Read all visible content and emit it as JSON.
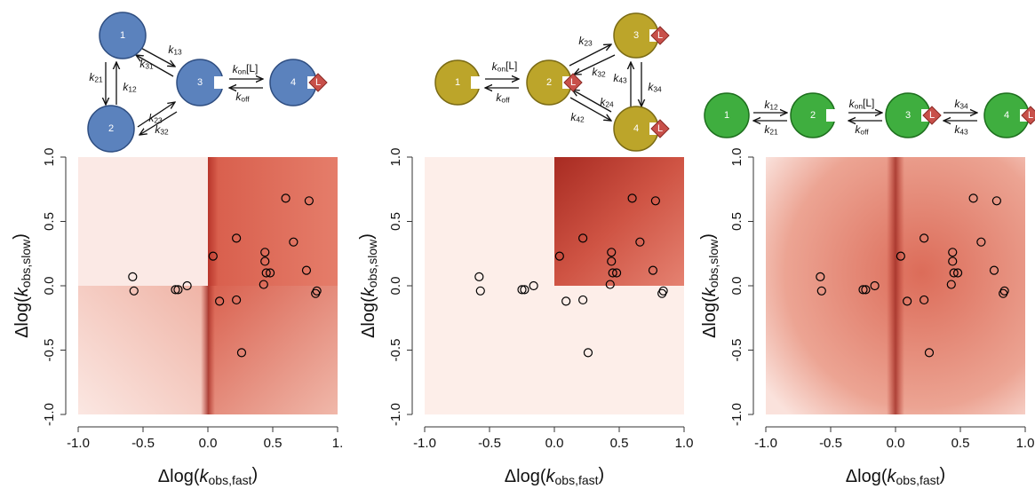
{
  "diagrams": [
    {
      "nodes": [
        "1",
        "2",
        "3",
        "4"
      ],
      "ligand": "L",
      "rates": [
        {
          "main": "k",
          "sub": "13",
          "tail": ""
        },
        {
          "main": "k",
          "sub": "31",
          "tail": ""
        },
        {
          "main": "k",
          "sub": "21",
          "tail": ""
        },
        {
          "main": "k",
          "sub": "12",
          "tail": ""
        },
        {
          "main": "k",
          "sub": "23",
          "tail": ""
        },
        {
          "main": "k",
          "sub": "32",
          "tail": ""
        },
        {
          "main": "k",
          "sub": "on",
          "tail": "[L]"
        },
        {
          "main": "k",
          "sub": "off",
          "tail": ""
        }
      ]
    },
    {
      "nodes": [
        "1",
        "2",
        "3",
        "4"
      ],
      "ligand": "L",
      "rates": [
        {
          "main": "k",
          "sub": "on",
          "tail": "[L]"
        },
        {
          "main": "k",
          "sub": "off",
          "tail": ""
        },
        {
          "main": "k",
          "sub": "23",
          "tail": ""
        },
        {
          "main": "k",
          "sub": "32",
          "tail": ""
        },
        {
          "main": "k",
          "sub": "24",
          "tail": ""
        },
        {
          "main": "k",
          "sub": "42",
          "tail": ""
        },
        {
          "main": "k",
          "sub": "43",
          "tail": ""
        },
        {
          "main": "k",
          "sub": "34",
          "tail": ""
        }
      ]
    },
    {
      "nodes": [
        "1",
        "2",
        "3",
        "4"
      ],
      "ligand": "L",
      "rates": [
        {
          "main": "k",
          "sub": "12",
          "tail": ""
        },
        {
          "main": "k",
          "sub": "21",
          "tail": ""
        },
        {
          "main": "k",
          "sub": "on",
          "tail": "[L]"
        },
        {
          "main": "k",
          "sub": "off",
          "tail": ""
        },
        {
          "main": "k",
          "sub": "34",
          "tail": ""
        },
        {
          "main": "k",
          "sub": "43",
          "tail": ""
        }
      ]
    }
  ],
  "chart_data": [
    {
      "type": "scatter",
      "x_label": {
        "prefix": "Δlog(",
        "main": "k",
        "sub": "obs,fast",
        "suffix": ")"
      },
      "y_label": {
        "prefix": "Δlog(",
        "main": "k",
        "sub": "obs,slow",
        "suffix": ")"
      },
      "xlim": [
        -1,
        1
      ],
      "ylim": [
        -1,
        1
      ],
      "xticks": [
        {
          "value": -1,
          "label": "-1.0"
        },
        {
          "value": -0.5,
          "label": "-0.5"
        },
        {
          "value": 0,
          "label": "0.0"
        },
        {
          "value": 0.5,
          "label": "0.5"
        },
        {
          "value": 1,
          "label": "1."
        }
      ],
      "yticks": [
        {
          "value": -1,
          "label": "-1.0"
        },
        {
          "value": -0.5,
          "label": "-0.5"
        },
        {
          "value": 0,
          "label": "0.0"
        },
        {
          "value": 0.5,
          "label": "0.5"
        },
        {
          "value": 1,
          "label": "1.0"
        }
      ],
      "series": [
        {
          "color": "#000000",
          "x": [
            -0.58,
            -0.57,
            -0.25,
            -0.23,
            -0.16,
            0.04,
            0.09,
            0.22,
            0.22,
            0.26,
            0.44,
            0.44,
            0.43,
            0.45,
            0.48,
            0.6,
            0.66,
            0.78,
            0.76,
            0.83,
            0.84
          ],
          "y": [
            0.07,
            -0.04,
            -0.03,
            -0.03,
            0.0,
            0.23,
            -0.12,
            0.37,
            -0.11,
            -0.52,
            0.26,
            0.19,
            0.01,
            0.1,
            0.1,
            0.68,
            0.34,
            0.66,
            0.12,
            -0.06,
            -0.04
          ]
        }
      ]
    },
    {
      "type": "scatter",
      "x_label": {
        "prefix": "Δlog(",
        "main": "k",
        "sub": "obs,fast",
        "suffix": ")"
      },
      "y_label": {
        "prefix": "Δlog(",
        "main": "k",
        "sub": "obs,slow",
        "suffix": ")"
      },
      "xlim": [
        -1,
        1
      ],
      "ylim": [
        -1,
        1
      ],
      "xticks": [
        {
          "value": -1,
          "label": "-1.0"
        },
        {
          "value": -0.5,
          "label": "-0.5"
        },
        {
          "value": 0,
          "label": "0.0"
        },
        {
          "value": 0.5,
          "label": "0.5"
        },
        {
          "value": 1,
          "label": "1.0"
        }
      ],
      "yticks": [
        {
          "value": -1,
          "label": "-1.0"
        },
        {
          "value": -0.5,
          "label": "-0.5"
        },
        {
          "value": 0,
          "label": "0.0"
        },
        {
          "value": 0.5,
          "label": "0.5"
        },
        {
          "value": 1,
          "label": "1.0"
        }
      ],
      "series": [
        {
          "color": "#000000",
          "x": [
            -0.58,
            -0.57,
            -0.25,
            -0.23,
            -0.16,
            0.04,
            0.09,
            0.22,
            0.22,
            0.26,
            0.44,
            0.44,
            0.43,
            0.45,
            0.48,
            0.6,
            0.66,
            0.78,
            0.76,
            0.83,
            0.84
          ],
          "y": [
            0.07,
            -0.04,
            -0.03,
            -0.03,
            0.0,
            0.23,
            -0.12,
            0.37,
            -0.11,
            -0.52,
            0.26,
            0.19,
            0.01,
            0.1,
            0.1,
            0.68,
            0.34,
            0.66,
            0.12,
            -0.06,
            -0.04
          ]
        }
      ]
    },
    {
      "type": "scatter",
      "x_label": {
        "prefix": "Δlog(",
        "main": "k",
        "sub": "obs,fast",
        "suffix": ")"
      },
      "y_label": {
        "prefix": "Δlog(",
        "main": "k",
        "sub": "obs,slow",
        "suffix": ")"
      },
      "xlim": [
        -1,
        1
      ],
      "ylim": [
        -1,
        1
      ],
      "xticks": [
        {
          "value": -1,
          "label": "-1.0"
        },
        {
          "value": -0.5,
          "label": "-0.5"
        },
        {
          "value": 0,
          "label": "0.0"
        },
        {
          "value": 0.5,
          "label": "0.5"
        },
        {
          "value": 1,
          "label": "1.0"
        }
      ],
      "yticks": [
        {
          "value": -1,
          "label": "-1.0"
        },
        {
          "value": -0.5,
          "label": "-0.5"
        },
        {
          "value": 0,
          "label": "0.0"
        },
        {
          "value": 0.5,
          "label": "0.5"
        },
        {
          "value": 1,
          "label": "1.0"
        }
      ],
      "series": [
        {
          "color": "#000000",
          "x": [
            -0.58,
            -0.57,
            -0.25,
            -0.23,
            -0.16,
            0.04,
            0.09,
            0.22,
            0.22,
            0.26,
            0.44,
            0.44,
            0.43,
            0.45,
            0.48,
            0.6,
            0.66,
            0.78,
            0.76,
            0.83,
            0.84
          ],
          "y": [
            0.07,
            -0.04,
            -0.03,
            -0.03,
            0.0,
            0.23,
            -0.12,
            0.37,
            -0.11,
            -0.52,
            0.26,
            0.19,
            0.01,
            0.1,
            0.1,
            0.68,
            0.34,
            0.66,
            0.12,
            -0.06,
            -0.04
          ]
        }
      ]
    }
  ]
}
